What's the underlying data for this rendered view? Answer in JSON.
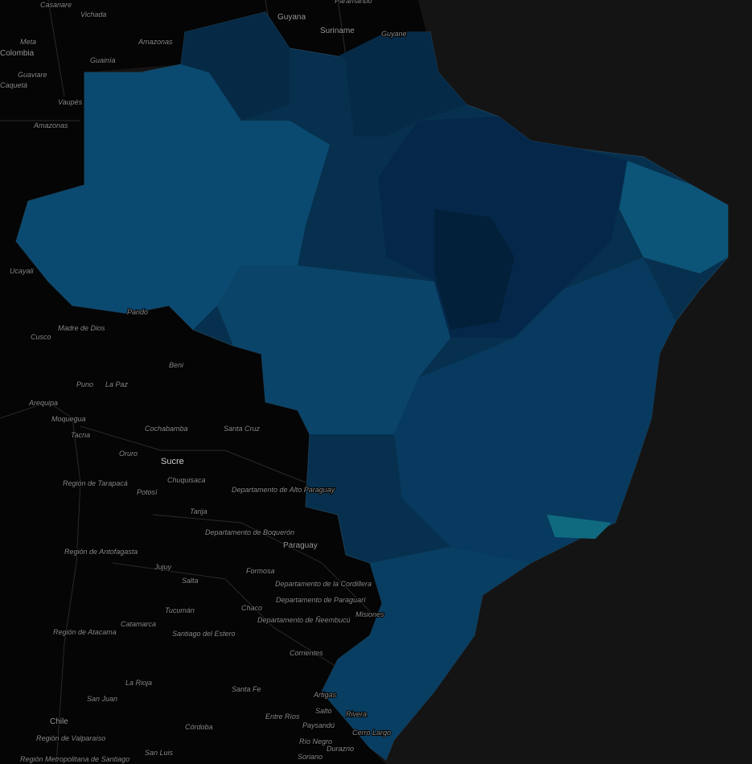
{
  "labels": [
    "Casanare",
    "Vichada",
    "Guyana",
    "Paramaribo",
    "Suriname",
    "Guyane",
    "Meta",
    "Colombia",
    "Amazonas",
    "Guainía",
    "Guaviare",
    "Caquetá",
    "Vaupés",
    "Amazonas",
    "Ucayali",
    "Pando",
    "Madre de Dios",
    "Cusco",
    "Beni",
    "Puno",
    "La Paz",
    "Arequipa",
    "Moquegua",
    "Tacna",
    "Cochabamba",
    "Santa Cruz",
    "Oruro",
    "Sucre",
    "Chuquisaca",
    "Región de Tarapacá",
    "Potosí",
    "Departamento de Alto Paraguay",
    "Tarija",
    "Departamento de Boquerón",
    "Paraguay",
    "Región de Antofagasta",
    "Jujuy",
    "Formosa",
    "Departamento de la Cordillera",
    "Departamento de Paraguarí",
    "Salta",
    "Chaco",
    "Tucumán",
    "Departamento de Ñeembucú",
    "Misiones",
    "Región de Atacama",
    "Catamarca",
    "Santiago del Estero",
    "Corrientes",
    "La Rioja",
    "San Juan",
    "Santa Fe",
    "Artigas",
    "Salto",
    "Rivera",
    "Entre Ríos",
    "Chile",
    "Córdoba",
    "Paysandú",
    "Región de Valparaíso",
    "Cerro Largo",
    "Río Negro",
    "San Luis",
    "Durazno",
    "Región Metropolitana de Santiago",
    "Soriano"
  ]
}
